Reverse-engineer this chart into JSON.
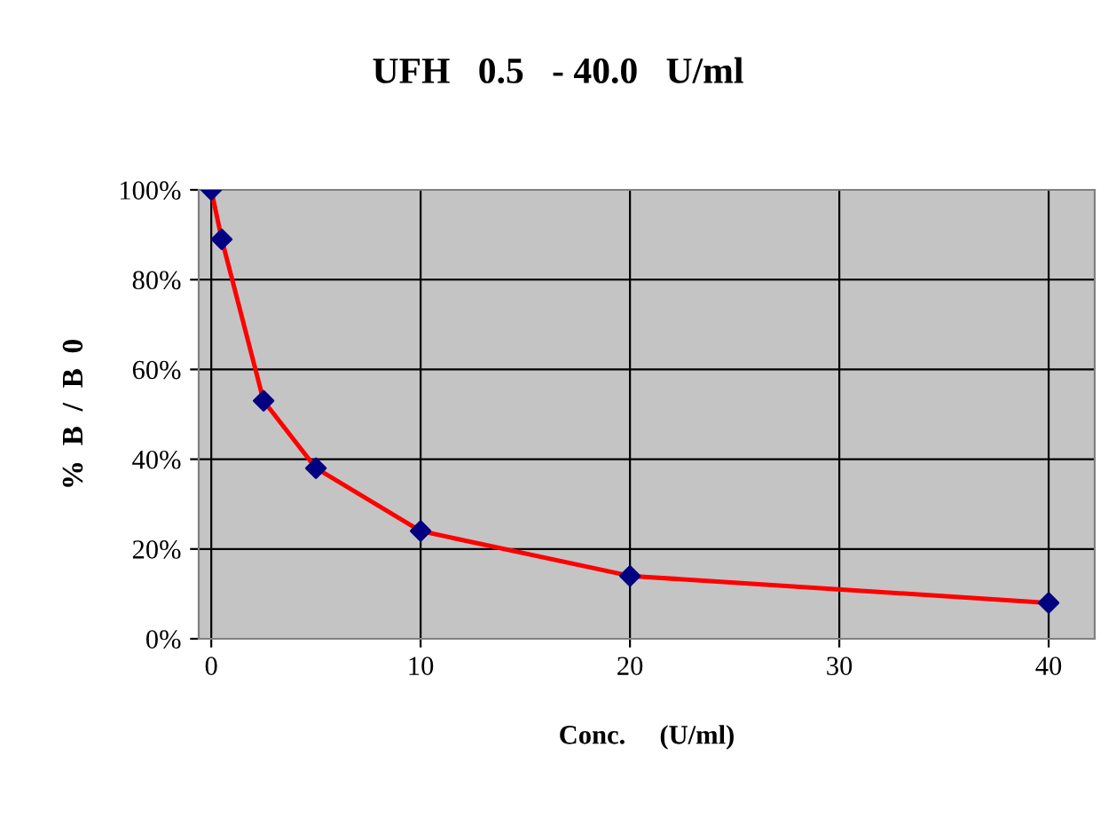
{
  "chart_data": {
    "type": "line",
    "title": "UFH   0.5   - 40.0   U/ml",
    "xlabel": "Conc.     (U/ml)",
    "ylabel": "%  B  /  B  0",
    "x": [
      0,
      0.5,
      2.5,
      5,
      10,
      20,
      40
    ],
    "series": [
      {
        "color": "#ff0000",
        "colors": [
          "#000080",
          "#000080",
          "#000080",
          "#000080",
          "#000080",
          "#000080",
          "#000080"
        ],
        "values": [
          100,
          89,
          53,
          38,
          24,
          14,
          8
        ]
      }
    ],
    "xlim": [
      -0.6,
      42.2
    ],
    "xticks": [
      0,
      10,
      20,
      30,
      40
    ],
    "ylim": [
      0,
      100
    ],
    "yticks": [
      {
        "value": 0,
        "label": "0%"
      },
      {
        "value": 20,
        "label": "20%"
      },
      {
        "value": 40,
        "label": "40%"
      },
      {
        "value": 60,
        "label": "60%"
      },
      {
        "value": 80,
        "label": "80%"
      },
      {
        "value": 100,
        "label": "100%"
      }
    ],
    "grid": true,
    "marker": "diamond",
    "line_style": "solid"
  }
}
